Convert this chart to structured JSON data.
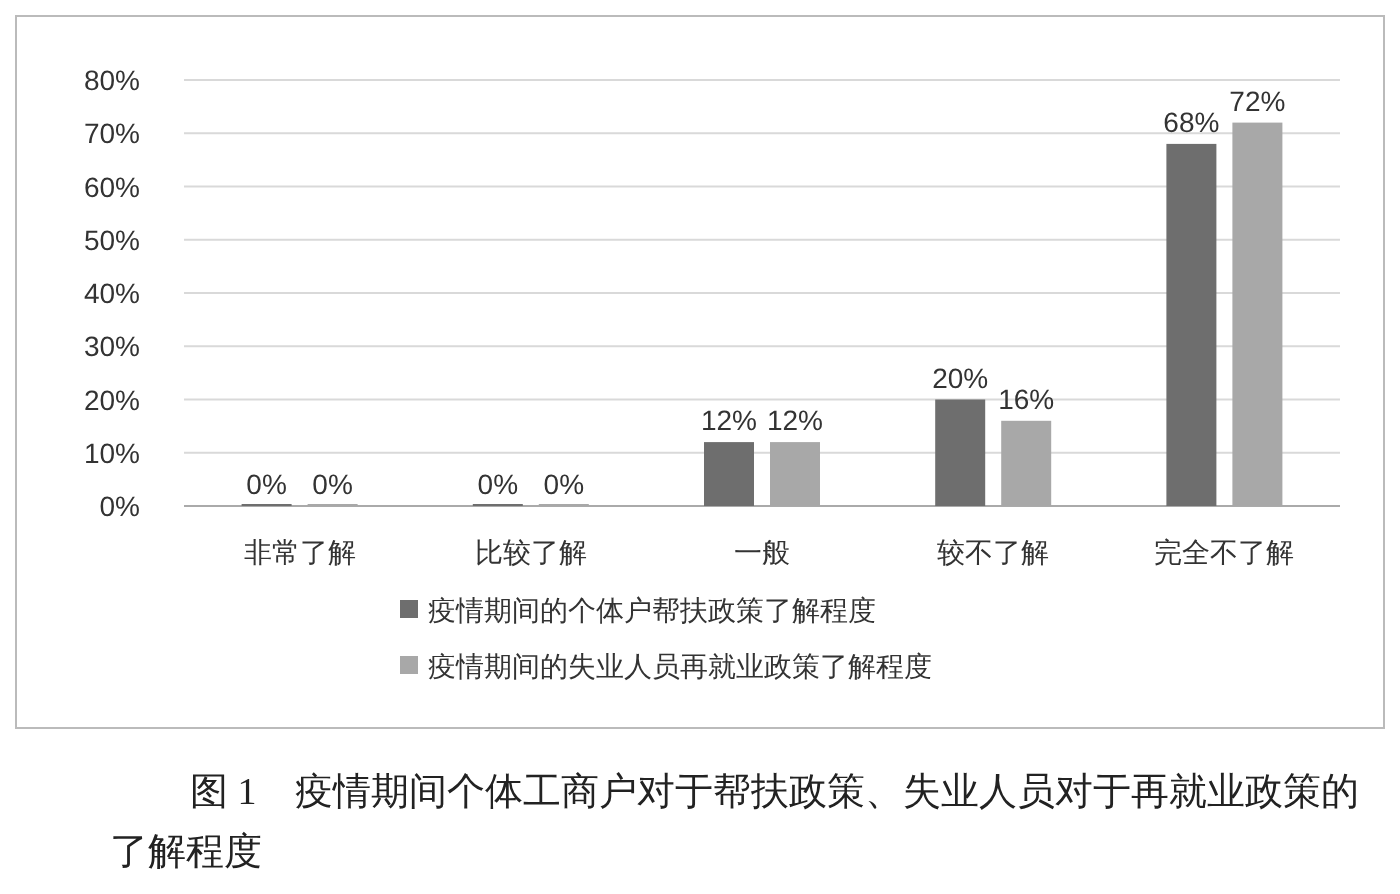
{
  "chart_data": {
    "type": "bar",
    "categories": [
      "非常了解",
      "比较了解",
      "一般",
      "较不了解",
      "完全不了解"
    ],
    "series": [
      {
        "name": "疫情期间的个体户帮扶政策了解程度",
        "color": "#6e6e6e",
        "values": [
          0,
          0,
          12,
          20,
          68
        ],
        "value_labels": [
          "0%",
          "0%",
          "12%",
          "20%",
          "68%"
        ]
      },
      {
        "name": "疫情期间的失业人员再就业政策了解程度",
        "color": "#a8a8a8",
        "values": [
          0,
          0,
          12,
          16,
          72
        ],
        "value_labels": [
          "0%",
          "0%",
          "12%",
          "16%",
          "72%"
        ]
      }
    ],
    "ylim": [
      0,
      80
    ],
    "yticks": [
      {
        "value": 0,
        "label": "0%"
      },
      {
        "value": 10,
        "label": "10%"
      },
      {
        "value": 20,
        "label": "20%"
      },
      {
        "value": 30,
        "label": "30%"
      },
      {
        "value": 40,
        "label": "40%"
      },
      {
        "value": 50,
        "label": "50%"
      },
      {
        "value": 60,
        "label": "60%"
      },
      {
        "value": 70,
        "label": "70%"
      },
      {
        "value": 80,
        "label": "80%"
      }
    ],
    "grid": "y",
    "legend": "bottom",
    "annotations": [
      "图 1　疫情期间个体工商户对于帮扶政策、失业人员对于再就业政策的了解程度"
    ]
  }
}
